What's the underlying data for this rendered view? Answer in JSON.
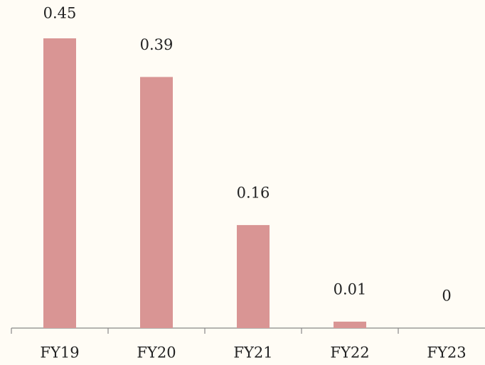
{
  "chart_data": {
    "type": "bar",
    "categories": [
      "FY19",
      "FY20",
      "FY21",
      "FY22",
      "FY23"
    ],
    "values": [
      0.45,
      0.39,
      0.16,
      0.01,
      0
    ],
    "color": "#d99594"
  }
}
